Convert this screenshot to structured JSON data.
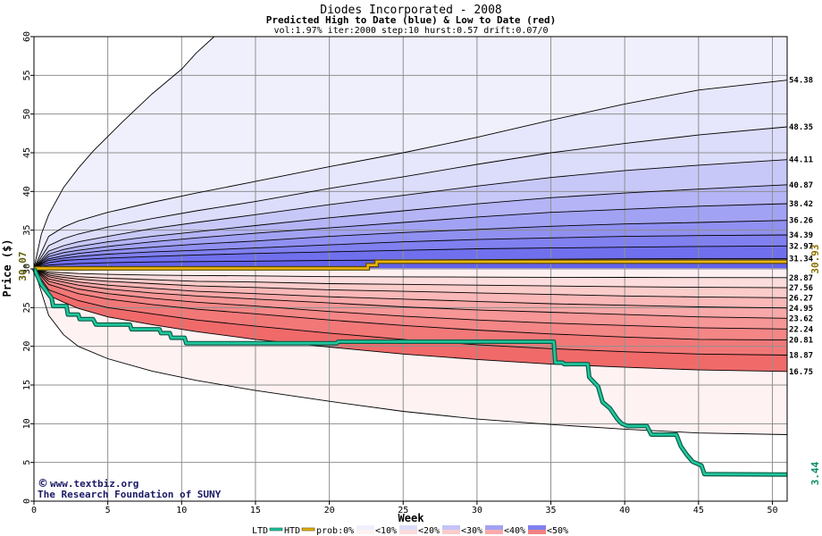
{
  "chart_data": {
    "type": "area",
    "title": "Diodes Incorporated - 2008",
    "subtitle": "Predicted High to Date (blue) &  Low to Date (red)",
    "params": "vol:1.97% iter:2000 step:10 hurst:0.57 drift:0.07/0",
    "xlabel": "Week",
    "ylabel": "Price ($)",
    "xlim": [
      0,
      51
    ],
    "ylim": [
      0,
      60
    ],
    "xticks": [
      0,
      5,
      10,
      15,
      20,
      25,
      30,
      35,
      40,
      45,
      50
    ],
    "yticks": [
      0,
      5,
      10,
      15,
      20,
      25,
      30,
      35,
      40,
      45,
      50,
      55,
      60
    ],
    "grid": true,
    "start_price": "30.07",
    "x_points": [
      0,
      1,
      2,
      3,
      5,
      8,
      11,
      15,
      20,
      25,
      30,
      35,
      40,
      45,
      51
    ],
    "high_bands": [
      {
        "end_label": "54.38",
        "values": [
          30.07,
          34.2,
          35.4,
          36.2,
          37.3,
          38.6,
          39.8,
          41.3,
          43.2,
          45.0,
          47.0,
          49.2,
          51.3,
          53.1,
          54.38
        ]
      },
      {
        "end_label": "48.35",
        "values": [
          30.07,
          33.0,
          33.9,
          34.5,
          35.4,
          36.5,
          37.5,
          38.7,
          40.4,
          41.9,
          43.5,
          45.0,
          46.2,
          47.3,
          48.35
        ]
      },
      {
        "end_label": "44.11",
        "values": [
          30.07,
          32.3,
          33.0,
          33.5,
          34.2,
          35.2,
          36.0,
          37.0,
          38.3,
          39.5,
          40.7,
          41.8,
          42.7,
          43.4,
          44.11
        ]
      },
      {
        "end_label": "40.87",
        "values": [
          30.07,
          31.9,
          32.5,
          32.9,
          33.5,
          34.2,
          34.8,
          35.6,
          36.6,
          37.5,
          38.4,
          39.2,
          39.8,
          40.3,
          40.87
        ]
      },
      {
        "end_label": "38.42",
        "values": [
          30.07,
          31.6,
          32.1,
          32.4,
          32.9,
          33.5,
          34.0,
          34.6,
          35.3,
          36.0,
          36.7,
          37.3,
          37.7,
          38.1,
          38.42
        ]
      },
      {
        "end_label": "36.26",
        "values": [
          30.07,
          31.3,
          31.7,
          32.0,
          32.4,
          32.8,
          33.2,
          33.6,
          34.2,
          34.7,
          35.1,
          35.5,
          35.8,
          36.0,
          36.26
        ]
      },
      {
        "end_label": "34.39",
        "values": [
          30.07,
          31.1,
          31.4,
          31.6,
          31.9,
          32.2,
          32.4,
          32.7,
          33.1,
          33.5,
          33.8,
          34.0,
          34.2,
          34.3,
          34.39
        ]
      },
      {
        "end_label": "32.97",
        "values": [
          30.07,
          30.8,
          31.1,
          31.2,
          31.4,
          31.6,
          31.8,
          32.0,
          32.2,
          32.4,
          32.6,
          32.7,
          32.8,
          32.9,
          32.97
        ]
      },
      {
        "end_label": "31.34",
        "values": [
          30.07,
          30.5,
          30.6,
          30.7,
          30.8,
          30.9,
          30.95,
          31.0,
          31.1,
          31.15,
          31.2,
          31.25,
          31.3,
          31.32,
          31.34
        ]
      }
    ],
    "low_bands": [
      {
        "end_label": "28.87",
        "values": [
          30.07,
          29.6,
          29.5,
          29.4,
          29.3,
          29.2,
          29.15,
          29.1,
          29.0,
          28.97,
          28.94,
          28.92,
          28.9,
          28.88,
          28.87
        ]
      },
      {
        "end_label": "27.56",
        "values": [
          30.07,
          29.4,
          29.2,
          29.0,
          28.8,
          28.6,
          28.4,
          28.3,
          28.1,
          28.0,
          27.9,
          27.8,
          27.7,
          27.62,
          27.56
        ]
      },
      {
        "end_label": "26.27",
        "values": [
          30.07,
          29.2,
          28.9,
          28.7,
          28.4,
          28.1,
          27.8,
          27.6,
          27.3,
          27.1,
          26.9,
          26.7,
          26.5,
          26.38,
          26.27
        ]
      },
      {
        "end_label": "24.95",
        "values": [
          30.07,
          29.0,
          28.6,
          28.3,
          27.9,
          27.5,
          27.1,
          26.8,
          26.4,
          26.1,
          25.8,
          25.5,
          25.3,
          25.1,
          24.95
        ]
      },
      {
        "end_label": "23.62",
        "values": [
          30.07,
          28.7,
          28.3,
          27.9,
          27.4,
          26.9,
          26.5,
          26.1,
          25.6,
          25.1,
          24.7,
          24.4,
          24.1,
          23.8,
          23.62
        ]
      },
      {
        "end_label": "22.24",
        "values": [
          30.07,
          28.4,
          27.9,
          27.4,
          26.8,
          26.2,
          25.7,
          25.2,
          24.5,
          23.9,
          23.4,
          23.0,
          22.7,
          22.4,
          22.24
        ]
      },
      {
        "end_label": "20.81",
        "values": [
          30.07,
          28.0,
          27.4,
          26.8,
          26.1,
          25.4,
          24.8,
          24.2,
          23.4,
          22.7,
          22.1,
          21.6,
          21.2,
          20.9,
          20.81
        ]
      },
      {
        "end_label": "18.87",
        "values": [
          30.07,
          27.3,
          26.6,
          25.9,
          25.0,
          24.2,
          23.4,
          22.6,
          21.7,
          20.9,
          20.2,
          19.7,
          19.3,
          19.0,
          18.87
        ]
      },
      {
        "end_label": "16.75",
        "values": [
          30.07,
          26.6,
          25.7,
          24.9,
          23.8,
          22.8,
          21.9,
          20.9,
          19.9,
          19.0,
          18.3,
          17.7,
          17.3,
          16.95,
          16.75
        ]
      }
    ],
    "outer_high": {
      "x": [
        0,
        0.5,
        1,
        2,
        3,
        4,
        6,
        8,
        10,
        11,
        12.2
      ],
      "values": [
        30.07,
        34.5,
        37.0,
        40.5,
        43.0,
        45.2,
        49.0,
        52.6,
        55.8,
        57.9,
        60
      ]
    },
    "outer_low": {
      "x": [
        0,
        1,
        2,
        3,
        5,
        8,
        11,
        15,
        20,
        25,
        30,
        35,
        40,
        45,
        51
      ],
      "values": [
        30.07,
        24.0,
        21.5,
        20.0,
        18.4,
        16.8,
        15.6,
        14.3,
        12.9,
        11.6,
        10.6,
        9.9,
        9.3,
        8.8,
        8.6
      ]
    },
    "htd_series": {
      "name": "HTD",
      "end_label": "30.93",
      "x": [
        0,
        22.6,
        22.6,
        23.2,
        23.2,
        51
      ],
      "values": [
        30.07,
        30.07,
        30.5,
        30.5,
        30.93,
        30.93
      ]
    },
    "ltd_series": {
      "name": "LTD",
      "end_label": "3.44",
      "x": [
        0,
        0.5,
        1.2,
        1.3,
        2.2,
        2.3,
        3.0,
        3.1,
        4.0,
        4.2,
        6.5,
        6.6,
        8.5,
        8.6,
        9.2,
        9.3,
        10.2,
        10.3,
        20.5,
        20.6,
        35.2,
        35.3,
        35.8,
        35.9,
        37.5,
        37.6,
        38.2,
        38.5,
        39.0,
        39.5,
        39.8,
        40.2,
        41.5,
        41.8,
        43.5,
        43.8,
        44.2,
        44.6,
        45.2,
        45.4,
        51
      ],
      "values": [
        30.07,
        28.0,
        26.2,
        25.2,
        25.2,
        24.1,
        24.1,
        23.5,
        23.5,
        22.8,
        22.8,
        22.2,
        22.2,
        21.7,
        21.7,
        21.1,
        21.1,
        20.4,
        20.4,
        20.6,
        20.6,
        17.9,
        17.9,
        17.7,
        17.7,
        16.0,
        14.8,
        12.8,
        12.0,
        10.6,
        10.0,
        9.7,
        9.7,
        8.6,
        8.6,
        7.1,
        6.0,
        5.1,
        4.6,
        3.5,
        3.44
      ]
    }
  },
  "credits": {
    "copyright_symbol": "©",
    "site": "www.textbiz.org",
    "org": "The Research Foundation of SUNY"
  },
  "legend": {
    "ltd": "LTD",
    "htd": "HTD",
    "prob": "prob:0%",
    "items": [
      "<10%",
      "<20%",
      "<30%",
      "<40%",
      "<50%"
    ],
    "high_colors": [
      "#f0f0fd",
      "#dcdcfb",
      "#c4c4f8",
      "#a2a2f4",
      "#8080f0"
    ],
    "low_colors": [
      "#fef2f2",
      "#fcdcdc",
      "#facccc",
      "#f8aaaa",
      "#f28282"
    ]
  },
  "colors": {
    "ltd_line": "#1ec89e",
    "ltd_outline": "#0f5b47",
    "htd_line": "#e8b40f",
    "htd_outline": "#5a4600",
    "start_label": "#5a5a00",
    "htd_label": "#8a7000",
    "ltd_label": "#0d8a67",
    "outer_high_fill": "#f0f0fd",
    "outer_low_fill": "#fef2f2",
    "high_band_fills": [
      "#e6e6fc",
      "#dcdcfb",
      "#c8c8f8",
      "#b4b4f6",
      "#a2a2f4",
      "#9090f2",
      "#8080f0",
      "#7070ee",
      "#6262ec"
    ],
    "low_band_fills": [
      "#fef0f0",
      "#fcdcdc",
      "#faccca",
      "#fab8b8",
      "#f8a8a8",
      "#f69696",
      "#f48686",
      "#f27878",
      "#f06a6a"
    ]
  }
}
